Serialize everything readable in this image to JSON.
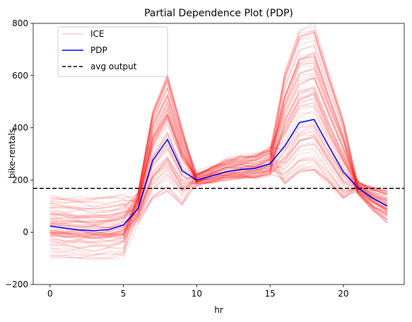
{
  "chart_data": {
    "type": "line",
    "title": "Partial Dependence Plot (PDP)",
    "xlabel": "hr",
    "ylabel": "bike-rentals",
    "xlim": [
      -1.15,
      24.15
    ],
    "ylim": [
      -200,
      800
    ],
    "xticks": [
      0,
      5,
      10,
      15,
      20
    ],
    "yticks": [
      -200,
      0,
      200,
      400,
      600,
      800
    ],
    "grid": false,
    "legend_position": "upper-left",
    "x": [
      0,
      1,
      2,
      3,
      4,
      5,
      6,
      7,
      8,
      9,
      10,
      11,
      12,
      13,
      14,
      15,
      16,
      17,
      18,
      19,
      20,
      21,
      22,
      23
    ],
    "series": [
      {
        "name": "ICE",
        "style": "thin translucent red lines, many instances",
        "color": "#ff0000",
        "opacity": 0.12,
        "instances": 80
      },
      {
        "name": "PDP",
        "color": "#0000ff",
        "values": [
          24,
          16,
          9,
          6,
          10,
          28,
          90,
          275,
          355,
          235,
          200,
          215,
          232,
          240,
          245,
          262,
          330,
          420,
          432,
          330,
          232,
          170,
          130,
          100
        ]
      },
      {
        "name": "avg output",
        "color": "#000000",
        "linestyle": "dashed",
        "value": 168
      }
    ]
  }
}
